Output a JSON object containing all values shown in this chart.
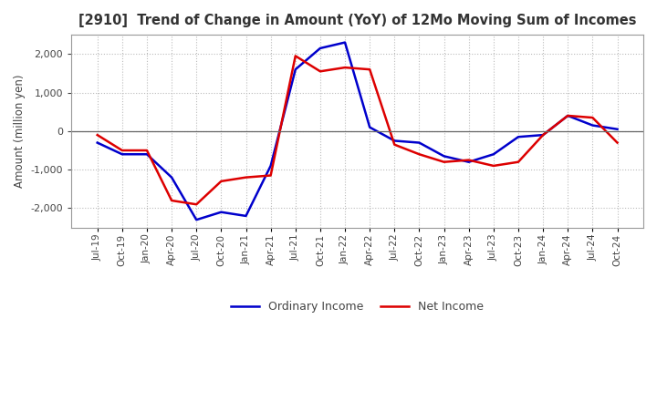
{
  "title": "[2910]  Trend of Change in Amount (YoY) of 12Mo Moving Sum of Incomes",
  "ylabel": "Amount (million yen)",
  "title_color": "#333333",
  "background_color": "#ffffff",
  "grid_color": "#bbbbbb",
  "ordinary_income_color": "#0000cc",
  "net_income_color": "#dd0000",
  "dates": [
    "Jul-19",
    "Oct-19",
    "Jan-20",
    "Apr-20",
    "Jul-20",
    "Oct-20",
    "Jan-21",
    "Apr-21",
    "Jul-21",
    "Oct-21",
    "Jan-22",
    "Apr-22",
    "Jul-22",
    "Oct-22",
    "Jan-23",
    "Apr-23",
    "Jul-23",
    "Oct-23",
    "Jan-24",
    "Apr-24",
    "Jul-24",
    "Oct-24"
  ],
  "ordinary_income": [
    -300,
    -600,
    -600,
    -1200,
    -2300,
    -2100,
    -2200,
    -900,
    1600,
    2150,
    2300,
    100,
    -250,
    -300,
    -650,
    -800,
    -600,
    -150,
    -100,
    400,
    150,
    50
  ],
  "net_income": [
    -100,
    -500,
    -500,
    -1800,
    -1900,
    -1300,
    -1200,
    -1150,
    1950,
    1550,
    1650,
    1600,
    -350,
    -600,
    -800,
    -750,
    -900,
    -800,
    -100,
    400,
    350,
    -300
  ],
  "ylim": [
    -2500,
    2500
  ],
  "yticks": [
    -2000,
    -1000,
    0,
    1000,
    2000
  ],
  "legend_labels": [
    "Ordinary Income",
    "Net Income"
  ]
}
